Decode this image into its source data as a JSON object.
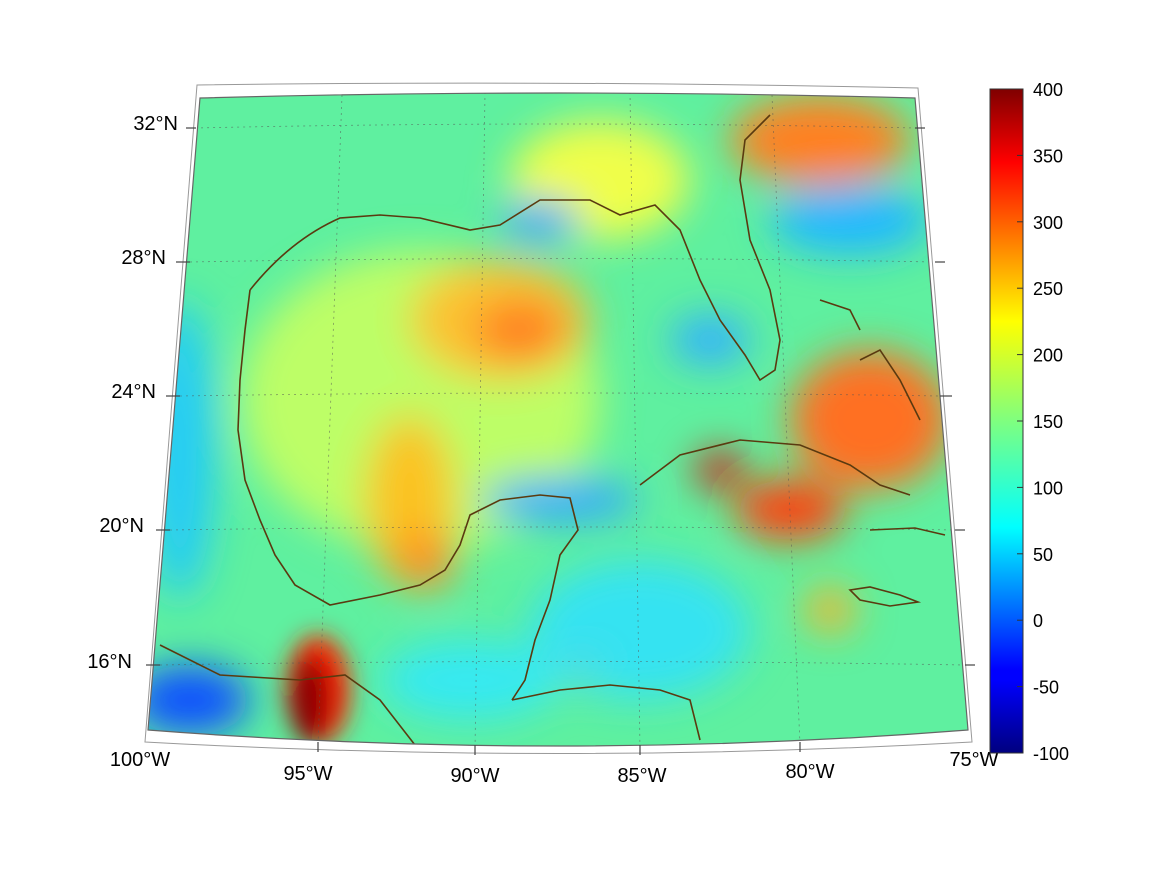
{
  "map": {
    "lon_labels": [
      "100°W",
      "95°W",
      "90°W",
      "85°W",
      "80°W",
      "75°W"
    ],
    "lat_labels": [
      "32°N",
      "28°N",
      "24°N",
      "20°N",
      "16°N"
    ],
    "hotspots_note_colors": {
      "high": "#8b0000",
      "mid": "#ffff00",
      "low": "#00ffff"
    }
  },
  "colorbar": {
    "ticks": [
      "400",
      "350",
      "300",
      "250",
      "200",
      "150",
      "100",
      "50",
      "0",
      "-50",
      "-100"
    ],
    "range": [
      -100,
      400
    ],
    "colormap": "jet"
  }
}
